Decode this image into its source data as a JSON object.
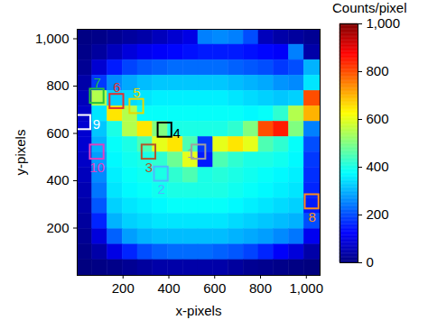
{
  "chart_data": {
    "type": "heatmap",
    "xlabel": "x-pixels",
    "ylabel": "y-pixels",
    "xlim": [
      0,
      1060
    ],
    "ylim": [
      0,
      1040
    ],
    "xticks": [
      200,
      400,
      600,
      800,
      1000
    ],
    "yticks": [
      200,
      400,
      600,
      800,
      1000
    ],
    "x_edges": [
      0,
      66,
      132,
      198,
      264,
      330,
      396,
      462,
      528,
      594,
      660,
      726,
      792,
      858,
      924,
      990,
      1060
    ],
    "y_edges": [
      1040,
      975,
      910,
      845,
      780,
      715,
      650,
      585,
      520,
      455,
      390,
      325,
      260,
      195,
      130,
      65,
      0
    ],
    "z": [
      [
        5,
        10,
        20,
        30,
        40,
        60,
        80,
        100,
        250,
        260,
        250,
        200,
        60,
        40,
        30,
        20
      ],
      [
        10,
        30,
        60,
        90,
        110,
        120,
        130,
        140,
        150,
        150,
        150,
        140,
        130,
        120,
        250,
        40
      ],
      [
        20,
        80,
        150,
        190,
        210,
        220,
        230,
        230,
        230,
        230,
        220,
        210,
        200,
        180,
        200,
        300
      ],
      [
        40,
        180,
        260,
        290,
        310,
        320,
        320,
        320,
        320,
        320,
        310,
        300,
        290,
        270,
        260,
        350
      ],
      [
        60,
        550,
        330,
        340,
        350,
        360,
        360,
        360,
        360,
        360,
        350,
        340,
        330,
        320,
        330,
        800
      ],
      [
        70,
        350,
        650,
        550,
        380,
        380,
        380,
        380,
        380,
        380,
        380,
        370,
        380,
        420,
        550,
        700
      ],
      [
        80,
        320,
        400,
        550,
        650,
        500,
        400,
        400,
        400,
        400,
        420,
        500,
        800,
        850,
        500,
        250
      ],
      [
        80,
        300,
        380,
        400,
        450,
        600,
        650,
        450,
        180,
        600,
        650,
        600,
        450,
        420,
        380,
        200
      ],
      [
        70,
        280,
        370,
        390,
        400,
        420,
        480,
        600,
        150,
        450,
        420,
        400,
        400,
        390,
        370,
        180
      ],
      [
        60,
        260,
        360,
        380,
        390,
        400,
        420,
        450,
        400,
        410,
        400,
        390,
        380,
        370,
        360,
        170
      ],
      [
        50,
        240,
        350,
        370,
        380,
        390,
        400,
        400,
        400,
        400,
        390,
        380,
        370,
        360,
        350,
        160
      ],
      [
        40,
        210,
        330,
        350,
        360,
        370,
        380,
        380,
        380,
        380,
        370,
        360,
        350,
        340,
        330,
        150
      ],
      [
        30,
        160,
        300,
        330,
        340,
        350,
        350,
        350,
        350,
        350,
        340,
        330,
        320,
        310,
        300,
        200
      ],
      [
        20,
        90,
        220,
        280,
        300,
        310,
        310,
        310,
        310,
        310,
        300,
        290,
        280,
        260,
        240,
        110
      ],
      [
        10,
        40,
        100,
        160,
        200,
        220,
        230,
        230,
        230,
        220,
        210,
        190,
        160,
        120,
        90,
        40
      ],
      [
        0,
        5,
        10,
        20,
        30,
        40,
        40,
        40,
        40,
        40,
        30,
        20,
        15,
        10,
        5,
        0
      ]
    ],
    "colorbar": {
      "title": "Counts/pixel",
      "range": [
        0,
        1000
      ],
      "ticks": [
        0,
        200,
        400,
        600,
        800,
        1000
      ]
    },
    "box_size": 60,
    "boxes": [
      {
        "label": "1",
        "x": 531,
        "y": 521,
        "color": "#a0a0a0"
      },
      {
        "label": "2",
        "x": 367,
        "y": 428,
        "color": "#4db8ff"
      },
      {
        "label": "3",
        "x": 313,
        "y": 521,
        "color": "#b5542a"
      },
      {
        "label": "4",
        "x": 383,
        "y": 614,
        "color": "#000000"
      },
      {
        "label": "5",
        "x": 260,
        "y": 714,
        "color": "#e8d800"
      },
      {
        "label": "6",
        "x": 173,
        "y": 735,
        "color": "#e03030"
      },
      {
        "label": "7",
        "x": 87,
        "y": 757,
        "color": "#22c040"
      },
      {
        "label": "8",
        "x": 1025,
        "y": 311,
        "color": "#ff8c1a"
      },
      {
        "label": "9",
        "x": 29,
        "y": 646,
        "color": "#ffffff"
      },
      {
        "label": "10",
        "x": 87,
        "y": 521,
        "color": "#e040c0"
      }
    ]
  }
}
